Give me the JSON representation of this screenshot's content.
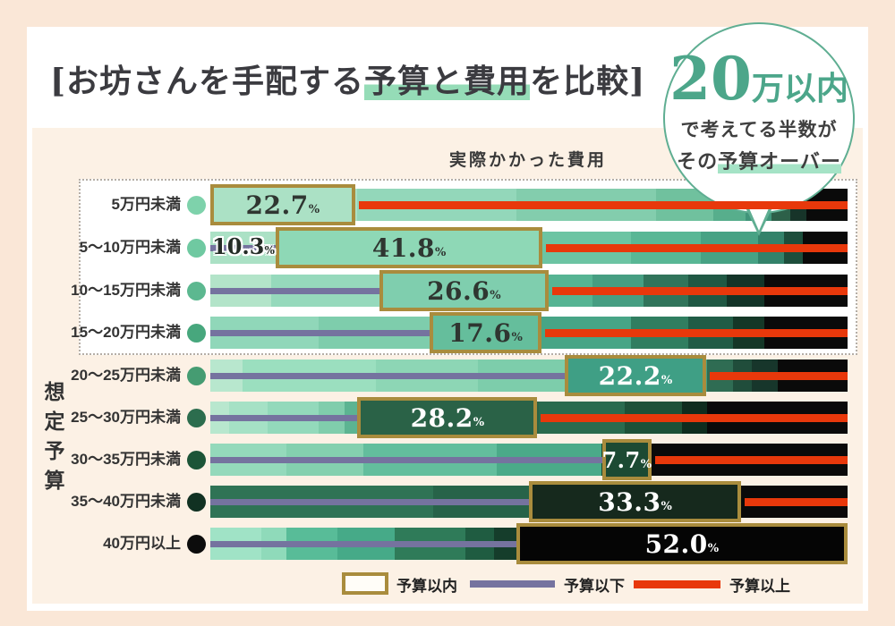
{
  "title": {
    "pre": "[お坊さんを手配する",
    "highlight": "予算と費用",
    "post": "を比較]"
  },
  "badge": {
    "big": "20",
    "unit": "万以内",
    "line2": "で考えてる半数が",
    "line3_pre": "その",
    "line3_highlight": "予算オーバー"
  },
  "costs_header": "実際かかった費用",
  "y_axis_title_chars": {
    "c0": "想",
    "c1": "定",
    "c2": "予",
    "c3": "算"
  },
  "misc": {
    "percent_sign": "%"
  },
  "colors": {
    "peach": "#fae7d7",
    "card": "#ffffff",
    "cream": "#fcf1e5",
    "gold": "#a98c3d",
    "red": "#e8380b",
    "purple": "#75739f",
    "mint-hl": "#95dcb7",
    "badge-green": "#4ca68a",
    "ink": "#3b3b40"
  },
  "legend": {
    "within_label": "予算以内",
    "below_label": "予算以下",
    "over_label": "予算以上"
  },
  "rows": [
    {
      "label": "5万円未満",
      "bullet": "#7ed2ab",
      "below_pct": 0,
      "within_pct": 22.7,
      "over_pct": 77.3,
      "within_display": "22.7",
      "box_fill": "#abe1c5",
      "box_text": "#2f3631",
      "segments": [
        [
          0,
          23,
          "#abe1c5"
        ],
        [
          23,
          48,
          "#93d7ba"
        ],
        [
          48,
          70,
          "#83cdad"
        ],
        [
          70,
          79,
          "#70c19e"
        ],
        [
          79,
          84,
          "#57ae8c"
        ],
        [
          84,
          88,
          "#40957a"
        ],
        [
          88,
          91,
          "#2d6049"
        ],
        [
          91,
          93.5,
          "#173429"
        ],
        [
          93.5,
          100,
          "#0a0a0a"
        ]
      ]
    },
    {
      "label": "5〜10万円未満",
      "bullet": "#6fc9a1",
      "below_pct": 10.3,
      "within_pct": 41.8,
      "over_pct": 47.9,
      "within_display": "41.8",
      "box_fill": "#8ed8b6",
      "box_text": "#2f3631",
      "below_display": "10.3",
      "segments": [
        [
          0,
          10.5,
          "#abe1c5"
        ],
        [
          10.5,
          52,
          "#84d2b2"
        ],
        [
          52,
          66,
          "#6cc4a3"
        ],
        [
          66,
          77,
          "#59b795"
        ],
        [
          77,
          86,
          "#47a284"
        ],
        [
          86,
          90,
          "#33826a"
        ],
        [
          90,
          93,
          "#1d4e3c"
        ],
        [
          93,
          100,
          "#0a0a0a"
        ]
      ]
    },
    {
      "label": "10〜15万円未満",
      "bullet": "#5cb890",
      "below_pct": 26.5,
      "within_pct": 26.6,
      "over_pct": 46.9,
      "within_display": "26.6",
      "box_fill": "#7fceae",
      "box_text": "#2f3631",
      "segments": [
        [
          0,
          9.5,
          "#b3e4c9"
        ],
        [
          9.5,
          26.5,
          "#96d9bc"
        ],
        [
          26.5,
          53,
          "#7fceae"
        ],
        [
          53,
          60,
          "#56b493"
        ],
        [
          60,
          68,
          "#469e82"
        ],
        [
          68,
          75,
          "#31745b"
        ],
        [
          75,
          81,
          "#205844"
        ],
        [
          81,
          87,
          "#133428"
        ],
        [
          87,
          100,
          "#0a0a0a"
        ]
      ]
    },
    {
      "label": "15〜20万円未満",
      "bullet": "#47a77d",
      "below_pct": 34.4,
      "within_pct": 17.6,
      "over_pct": 48.0,
      "within_display": "17.6",
      "box_fill": "#65be9c",
      "box_text": "#2f3631",
      "segments": [
        [
          0,
          17,
          "#90d7b9"
        ],
        [
          17,
          34.4,
          "#7ecdac"
        ],
        [
          34.4,
          52,
          "#65be9c"
        ],
        [
          52,
          66,
          "#47a586"
        ],
        [
          66,
          75,
          "#307e60"
        ],
        [
          75,
          82,
          "#205c46"
        ],
        [
          82,
          87,
          "#143727"
        ],
        [
          87,
          100,
          "#0a0a0a"
        ]
      ]
    },
    {
      "label": "20〜25万円未満",
      "bullet": "#459c72",
      "below_pct": 55.6,
      "within_pct": 22.2,
      "over_pct": 22.2,
      "within_display": "22.2",
      "box_fill": "#3f9f85",
      "box_text": "#ffffff",
      "segments": [
        [
          0,
          5,
          "#b8e7ce"
        ],
        [
          5,
          26,
          "#9bdfbf"
        ],
        [
          26,
          42,
          "#8dd6b5"
        ],
        [
          42,
          56,
          "#7dcdab"
        ],
        [
          56,
          78,
          "#3f9f85"
        ],
        [
          78,
          82,
          "#2f6c53"
        ],
        [
          82,
          85,
          "#204d3b"
        ],
        [
          85,
          89,
          "#17362b"
        ],
        [
          89,
          100,
          "#0a0a0a"
        ]
      ]
    },
    {
      "label": "25〜30万円未満",
      "bullet": "#2c6d4e",
      "below_pct": 23.1,
      "within_pct": 28.2,
      "over_pct": 48.7,
      "within_display": "28.2",
      "box_fill": "#2a6247",
      "box_text": "#ffffff",
      "segments": [
        [
          0,
          3,
          "#b8e7ce"
        ],
        [
          3,
          9,
          "#a5e1c5"
        ],
        [
          9,
          17,
          "#93d9bb"
        ],
        [
          17,
          21,
          "#80cdac"
        ],
        [
          21,
          23.3,
          "#5cb492"
        ],
        [
          23.3,
          51.5,
          "#2a6247"
        ],
        [
          51.5,
          65,
          "#2a6b4e"
        ],
        [
          65,
          74,
          "#1e5138"
        ],
        [
          74,
          78,
          "#0f2c1e"
        ],
        [
          78,
          100,
          "#0a0a0a"
        ]
      ]
    },
    {
      "label": "30〜35万円未満",
      "bullet": "#1c5437",
      "below_pct": 61.5,
      "within_pct": 7.7,
      "over_pct": 30.8,
      "within_display": "7.7",
      "box_fill": "#1c4a33",
      "box_text": "#ffffff",
      "segments": [
        [
          0,
          12,
          "#94d9bb"
        ],
        [
          12,
          24,
          "#84d0af"
        ],
        [
          24,
          45,
          "#63be9d"
        ],
        [
          45,
          61.4,
          "#4baa89"
        ],
        [
          61.4,
          69.2,
          "#1c4a33"
        ],
        [
          69.2,
          100,
          "#0a0a0a"
        ]
      ]
    },
    {
      "label": "35〜40万円未満",
      "bullet": "#113122",
      "below_pct": 50.0,
      "within_pct": 33.3,
      "over_pct": 16.7,
      "within_display": "33.3",
      "box_fill": "#16291d",
      "box_text": "#ffffff",
      "segments": [
        [
          0,
          35,
          "#2f7355"
        ],
        [
          35,
          50,
          "#276349"
        ],
        [
          50,
          83,
          "#16291d"
        ],
        [
          83,
          100,
          "#0a0a0a"
        ]
      ]
    },
    {
      "label": "40万円以上",
      "bullet": "#0c0c0c",
      "below_pct": 48.0,
      "within_pct": 52.0,
      "over_pct": 0,
      "within_display": "52.0",
      "box_fill": "#050505",
      "box_text": "#ffffff",
      "segments": [
        [
          0,
          8,
          "#a0e3c6"
        ],
        [
          8,
          12,
          "#8fdaba"
        ],
        [
          12,
          20,
          "#58bc98"
        ],
        [
          20,
          29,
          "#46aa88"
        ],
        [
          29,
          40,
          "#2f7b59"
        ],
        [
          40,
          44.5,
          "#1f5c41"
        ],
        [
          44.5,
          48,
          "#153d2b"
        ],
        [
          48,
          100,
          "#050505"
        ]
      ]
    }
  ],
  "chart_data": {
    "type": "bar",
    "orientation": "horizontal-stacked",
    "title": "[お坊さんを手配する予算と費用を比較]",
    "x_axis_label": "実際かかった費用",
    "y_axis_label": "想定予算",
    "categories": [
      "5万円未満",
      "5〜10万円未満",
      "10〜15万円未満",
      "15〜20万円未満",
      "20〜25万円未満",
      "25〜30万円未満",
      "30〜35万円未満",
      "35〜40万円未満",
      "40万円以上"
    ],
    "series": [
      {
        "name": "予算以下",
        "values": [
          0,
          10.3,
          26.5,
          34.4,
          55.6,
          23.1,
          61.5,
          50.0,
          48.0
        ],
        "note": "only 10.3 labeled on chart; others estimated from bar geometry",
        "color": "#75739f"
      },
      {
        "name": "予算以内",
        "values": [
          22.7,
          41.8,
          26.6,
          17.6,
          22.2,
          28.2,
          7.7,
          33.3,
          52.0
        ],
        "color": "gold-outlined box"
      },
      {
        "name": "予算以上",
        "values": [
          77.3,
          47.9,
          46.9,
          48.0,
          22.2,
          48.7,
          30.8,
          16.7,
          0
        ],
        "note": "estimated from bar geometry",
        "color": "#e8380b"
      }
    ],
    "xlim": [
      0,
      100
    ],
    "annotation": "20万以内で考えてる半数がその予算オーバー",
    "grouped_rows_note": "first four categories enclosed in dotted box",
    "legend_position": "bottom"
  }
}
